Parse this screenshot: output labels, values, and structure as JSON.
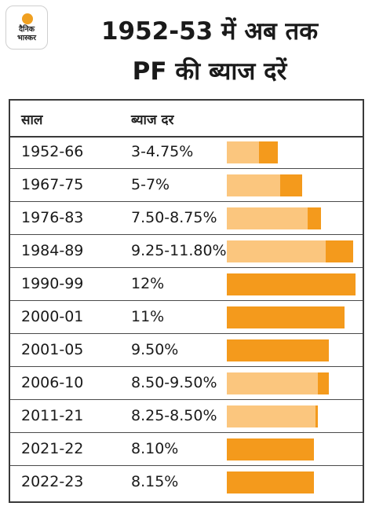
{
  "logo": {
    "line1": "दैनिक",
    "line2": "भास्कर"
  },
  "title": {
    "line1": "1952-53 में अब तक",
    "line2": "PF की ब्याज दरें"
  },
  "table": {
    "col_year": "साल",
    "col_rate": "ब्याज दर"
  },
  "colors": {
    "light": "#fbc67e",
    "dark": "#f49a1c",
    "border": "#3a3a3a"
  },
  "chart_data": {
    "type": "bar",
    "title": "1952-53 में अब तक PF की ब्याज दरें",
    "xlabel": "साल",
    "ylabel": "ब्याज दर",
    "unit": "%",
    "rows": [
      {
        "period": "1952-66",
        "label": "3-4.75%",
        "low": 3,
        "high": 4.75
      },
      {
        "period": "1967-75",
        "label": "5-7%",
        "low": 5,
        "high": 7
      },
      {
        "period": "1976-83",
        "label": "7.50-8.75%",
        "low": 7.5,
        "high": 8.75
      },
      {
        "period": "1984-89",
        "label": "9.25-11.80%",
        "low": 9.25,
        "high": 11.8
      },
      {
        "period": "1990-99",
        "label": "12%",
        "low": 12,
        "high": 12
      },
      {
        "period": "2000-01",
        "label": "11%",
        "low": 11,
        "high": 11
      },
      {
        "period": "2001-05",
        "label": "9.50%",
        "low": 9.5,
        "high": 9.5
      },
      {
        "period": "2006-10",
        "label": "8.50-9.50%",
        "low": 8.5,
        "high": 9.5
      },
      {
        "period": "2011-21",
        "label": "8.25-8.50%",
        "low": 8.25,
        "high": 8.5
      },
      {
        "period": "2021-22",
        "label": "8.10%",
        "low": 8.1,
        "high": 8.1
      },
      {
        "period": "2022-23",
        "label": "8.15%",
        "low": 8.15,
        "high": 8.15
      }
    ]
  }
}
